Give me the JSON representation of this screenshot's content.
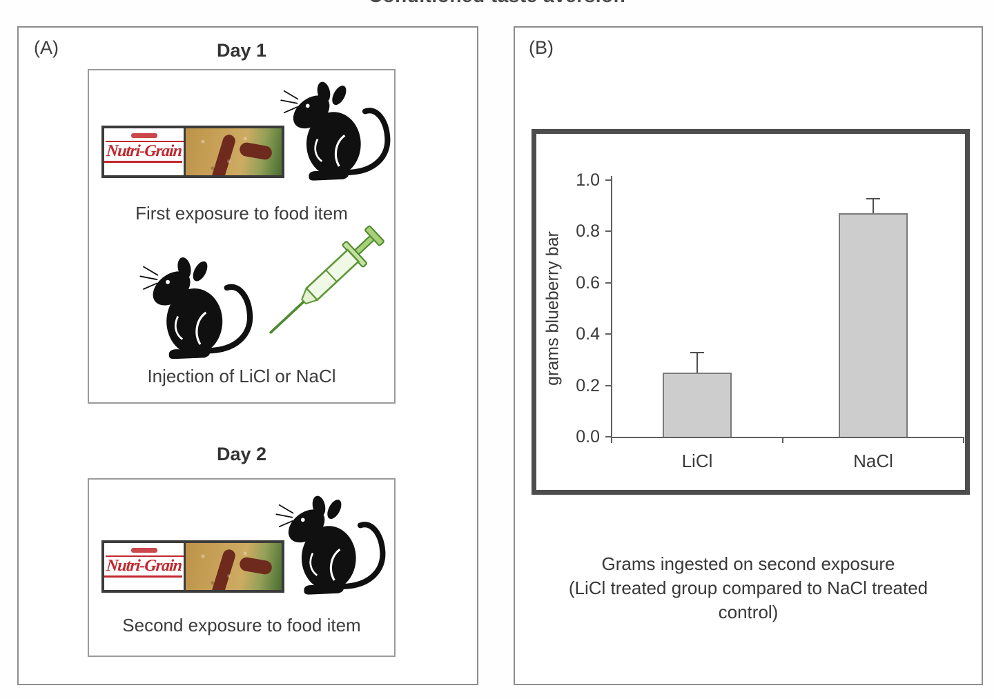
{
  "title": "Conditioned taste aversion",
  "panel_a": {
    "label": "(A)",
    "food_brand": "Nutri-Grain",
    "day1": {
      "heading": "Day 1",
      "caption_exposure": "First exposure to food item",
      "caption_injection": "Injection of LiCl or NaCl"
    },
    "day2": {
      "heading": "Day 2",
      "caption_exposure": "Second exposure to food item"
    }
  },
  "panel_b": {
    "label": "(B)",
    "caption_line1": "Grams ingested on second exposure",
    "caption_line2": "(LiCl treated group compared to NaCl treated",
    "caption_line3": "control)"
  },
  "chart_data": {
    "type": "bar",
    "title": "",
    "categories": [
      "LiCl",
      "NaCl"
    ],
    "values": [
      0.25,
      0.87
    ],
    "errors": [
      0.08,
      0.06
    ],
    "xlabel": "",
    "ylabel": "grams blueberry bar",
    "ylim": [
      0.0,
      1.0
    ],
    "yticks": [
      0.0,
      0.2,
      0.4,
      0.6,
      0.8,
      1.0
    ],
    "ytick_labels": [
      "0.0",
      "0.2",
      "0.4",
      "0.6",
      "0.8",
      "1.0"
    ],
    "grid": false,
    "legend": false,
    "bar_fill": "#cdcdcd",
    "bar_border": "#7a7a7a"
  },
  "colors": {
    "brand_red": "#c1272d",
    "syringe_green": "#5d9638",
    "panel_border": "#8c8c8c",
    "chart_frame": "#4d4d4d",
    "text": "#3a3a3a"
  }
}
